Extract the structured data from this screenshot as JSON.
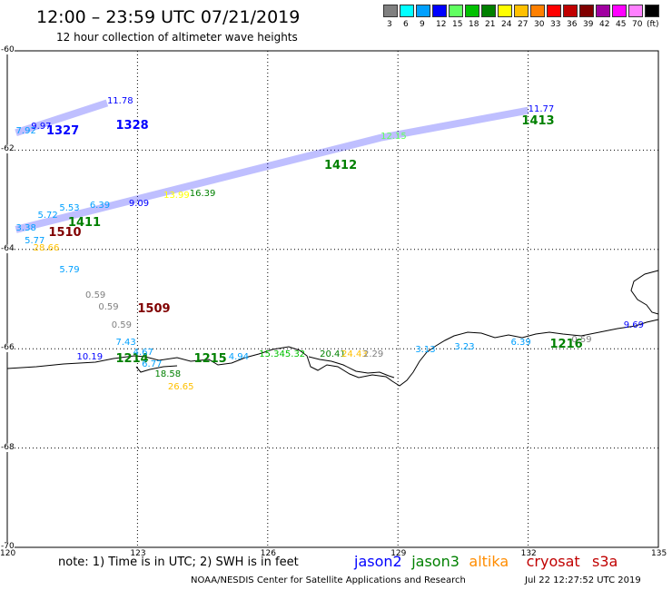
{
  "title": "12:00 – 23:59 UTC 07/21/2019",
  "subtitle": "12 hour collection of altimeter wave heights",
  "legend": {
    "unit": "(ft)",
    "bins": [
      {
        "label": "3",
        "color": "#808080"
      },
      {
        "label": "6",
        "color": "#00ffff"
      },
      {
        "label": "9",
        "color": "#00a0ff"
      },
      {
        "label": "12",
        "color": "#0000ff"
      },
      {
        "label": "15",
        "color": "#60ff60"
      },
      {
        "label": "18",
        "color": "#00c000"
      },
      {
        "label": "21",
        "color": "#008000"
      },
      {
        "label": "24",
        "color": "#ffff00"
      },
      {
        "label": "27",
        "color": "#ffc000"
      },
      {
        "label": "30",
        "color": "#ff8000"
      },
      {
        "label": "33",
        "color": "#ff0000"
      },
      {
        "label": "36",
        "color": "#c00000"
      },
      {
        "label": "39",
        "color": "#800000"
      },
      {
        "label": "42",
        "color": "#a000a0"
      },
      {
        "label": "45",
        "color": "#ff00ff"
      },
      {
        "label": "70",
        "color": "#ff80ff"
      },
      {
        "label": "",
        "color": "#000000"
      }
    ]
  },
  "axes": {
    "lat_labels": [
      "-60",
      "-62",
      "-64",
      "-66",
      "-68",
      "-70"
    ],
    "lon_labels": [
      "120",
      "123",
      "126",
      "129",
      "132",
      "135"
    ]
  },
  "note": "note:  1) Time is in UTC;  2) SWH is in feet",
  "satellites": [
    {
      "name": "jason2",
      "color": "#0000ff"
    },
    {
      "name": "jason3",
      "color": "#008000"
    },
    {
      "name": "altika",
      "color": "#ff8c00"
    },
    {
      "name": "cryosat",
      "color": "#c00000"
    },
    {
      "name": "s3a",
      "color": "#c00000"
    }
  ],
  "credit": "NOAA/NESDIS Center for Satellite Applications and Research",
  "timestamp": "Jul 22 12:27:52 UTC 2019",
  "observations": [
    {
      "text": "1328",
      "lon": 122.5,
      "lat": -61.5,
      "color": "#0000ff",
      "bold": true
    },
    {
      "text": "11.78",
      "lon": 122.3,
      "lat": -61.05,
      "color": "#0000ff"
    },
    {
      "text": "1327",
      "lon": 120.9,
      "lat": -61.6,
      "color": "#0000ff",
      "bold": true
    },
    {
      "text": "7.92",
      "lon": 120.2,
      "lat": -61.65,
      "color": "#00a0ff"
    },
    {
      "text": "9.97",
      "lon": 120.55,
      "lat": -61.55,
      "color": "#0000ff"
    },
    {
      "text": "1413",
      "lon": 131.85,
      "lat": -61.4,
      "color": "#008000",
      "bold": true
    },
    {
      "text": "11.77",
      "lon": 132.0,
      "lat": -61.2,
      "color": "#0000ff"
    },
    {
      "text": "1412",
      "lon": 127.3,
      "lat": -62.3,
      "color": "#008000",
      "bold": true
    },
    {
      "text": "12.15",
      "lon": 128.6,
      "lat": -61.75,
      "color": "#60ff60"
    },
    {
      "text": "16.39",
      "lon": 124.2,
      "lat": -62.9,
      "color": "#008000"
    },
    {
      "text": "13.99",
      "lon": 123.6,
      "lat": -62.95,
      "color": "#ffff00"
    },
    {
      "text": "9.09",
      "lon": 122.8,
      "lat": -63.1,
      "color": "#0000ff"
    },
    {
      "text": "6.39",
      "lon": 121.9,
      "lat": -63.15,
      "color": "#00a0ff"
    },
    {
      "text": "5.53",
      "lon": 121.2,
      "lat": -63.2,
      "color": "#00a0ff"
    },
    {
      "text": "1411",
      "lon": 121.4,
      "lat": -63.45,
      "color": "#008000",
      "bold": true
    },
    {
      "text": "5.72",
      "lon": 120.7,
      "lat": -63.35,
      "color": "#00a0ff"
    },
    {
      "text": "3.38",
      "lon": 120.2,
      "lat": -63.6,
      "color": "#00a0ff"
    },
    {
      "text": "1510",
      "lon": 120.95,
      "lat": -63.65,
      "color": "#800000",
      "bold": true
    },
    {
      "text": "5.77",
      "lon": 120.4,
      "lat": -63.85,
      "color": "#00a0ff"
    },
    {
      "text": "28.66",
      "lon": 120.6,
      "lat": -64.0,
      "color": "#ffc000"
    },
    {
      "text": "5.79",
      "lon": 121.2,
      "lat": -64.45,
      "color": "#00a0ff"
    },
    {
      "text": "0.59",
      "lon": 121.8,
      "lat": -64.95,
      "color": "#808080"
    },
    {
      "text": "0.59",
      "lon": 122.1,
      "lat": -65.2,
      "color": "#808080"
    },
    {
      "text": "1509",
      "lon": 123.0,
      "lat": -65.2,
      "color": "#800000",
      "bold": true
    },
    {
      "text": "0.59",
      "lon": 122.4,
      "lat": -65.55,
      "color": "#808080"
    },
    {
      "text": "7.43",
      "lon": 122.5,
      "lat": -65.9,
      "color": "#00a0ff"
    },
    {
      "text": "10.19",
      "lon": 121.6,
      "lat": -66.2,
      "color": "#0000ff"
    },
    {
      "text": "1214",
      "lon": 122.5,
      "lat": -66.2,
      "color": "#008000",
      "bold": true
    },
    {
      "text": "4.67",
      "lon": 122.9,
      "lat": -66.1,
      "color": "#00a0ff"
    },
    {
      "text": "6.77",
      "lon": 123.1,
      "lat": -66.35,
      "color": "#00a0ff"
    },
    {
      "text": "1215",
      "lon": 124.3,
      "lat": -66.2,
      "color": "#008000",
      "bold": true
    },
    {
      "text": "4.94",
      "lon": 125.1,
      "lat": -66.2,
      "color": "#00a0ff"
    },
    {
      "text": "15.34",
      "lon": 125.8,
      "lat": -66.15,
      "color": "#00c000"
    },
    {
      "text": "5.32",
      "lon": 126.4,
      "lat": -66.15,
      "color": "#00c000"
    },
    {
      "text": "20.41",
      "lon": 127.2,
      "lat": -66.15,
      "color": "#008000"
    },
    {
      "text": "24.43",
      "lon": 127.7,
      "lat": -66.15,
      "color": "#ffc000"
    },
    {
      "text": "2.29",
      "lon": 128.2,
      "lat": -66.15,
      "color": "#808080"
    },
    {
      "text": "3.13",
      "lon": 129.4,
      "lat": -66.05,
      "color": "#00a0ff"
    },
    {
      "text": "3.23",
      "lon": 130.3,
      "lat": -66.0,
      "color": "#00a0ff"
    },
    {
      "text": "6.39",
      "lon": 131.6,
      "lat": -65.9,
      "color": "#00a0ff"
    },
    {
      "text": "1216",
      "lon": 132.5,
      "lat": -65.9,
      "color": "#008000",
      "bold": true
    },
    {
      "text": "0.59",
      "lon": 133.0,
      "lat": -65.85,
      "color": "#808080"
    },
    {
      "text": "9.69",
      "lon": 134.2,
      "lat": -65.55,
      "color": "#0000ff"
    },
    {
      "text": "18.58",
      "lon": 123.4,
      "lat": -66.55,
      "color": "#008000"
    },
    {
      "text": "26.65",
      "lon": 123.7,
      "lat": -66.8,
      "color": "#ffc000"
    }
  ]
}
